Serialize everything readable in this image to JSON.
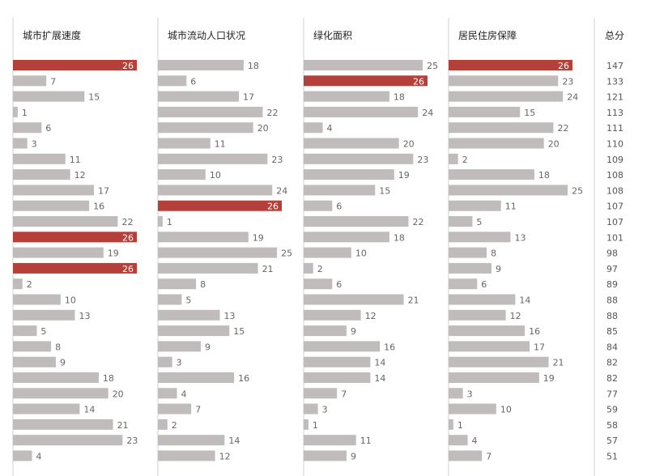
{
  "chart_data": {
    "type": "bar",
    "columns": [
      {
        "key": "expansion",
        "header": "城市扩展速度"
      },
      {
        "key": "migrant",
        "header": "城市流动人口状况"
      },
      {
        "key": "green",
        "header": "绿化面积"
      },
      {
        "key": "housing",
        "header": "居民住房保障"
      }
    ],
    "total_header": "总分",
    "value_range": [
      0,
      26
    ],
    "colors": {
      "bar": "#c0bcbc",
      "highlight": "#b5403a",
      "label": "#666666",
      "label_on_highlight": "#ffffff",
      "divider": "#d0d0d0"
    },
    "rows": [
      {
        "values": [
          26,
          18,
          25,
          26
        ],
        "total": 147
      },
      {
        "values": [
          7,
          6,
          26,
          23
        ],
        "total": 133
      },
      {
        "values": [
          15,
          17,
          18,
          24
        ],
        "total": 121
      },
      {
        "values": [
          1,
          22,
          24,
          15
        ],
        "total": 113
      },
      {
        "values": [
          6,
          20,
          4,
          22
        ],
        "total": 111
      },
      {
        "values": [
          3,
          11,
          20,
          20
        ],
        "total": 110
      },
      {
        "values": [
          11,
          23,
          23,
          2
        ],
        "total": 109
      },
      {
        "values": [
          12,
          10,
          19,
          18
        ],
        "total": 108
      },
      {
        "values": [
          17,
          24,
          15,
          25
        ],
        "total": 108
      },
      {
        "values": [
          16,
          26,
          6,
          11
        ],
        "total": 107
      },
      {
        "values": [
          22,
          1,
          22,
          5
        ],
        "total": 107
      },
      {
        "values": [
          26,
          19,
          18,
          13
        ],
        "total": 101
      },
      {
        "values": [
          19,
          25,
          10,
          8
        ],
        "total": 98
      },
      {
        "values": [
          26,
          21,
          2,
          9
        ],
        "total": 97
      },
      {
        "values": [
          2,
          8,
          6,
          6
        ],
        "total": 89
      },
      {
        "values": [
          10,
          5,
          21,
          14
        ],
        "total": 88
      },
      {
        "values": [
          13,
          13,
          12,
          12
        ],
        "total": 88
      },
      {
        "values": [
          5,
          15,
          9,
          16
        ],
        "total": 85
      },
      {
        "values": [
          8,
          9,
          16,
          17
        ],
        "total": 84
      },
      {
        "values": [
          9,
          3,
          14,
          21
        ],
        "total": 82
      },
      {
        "values": [
          18,
          16,
          14,
          19
        ],
        "total": 82
      },
      {
        "values": [
          20,
          4,
          7,
          3
        ],
        "total": 77
      },
      {
        "values": [
          14,
          7,
          3,
          10
        ],
        "total": 59
      },
      {
        "values": [
          21,
          2,
          1,
          1
        ],
        "total": 58
      },
      {
        "values": [
          23,
          14,
          11,
          4
        ],
        "total": 57
      },
      {
        "values": [
          4,
          12,
          9,
          7
        ],
        "total": 51
      }
    ]
  }
}
